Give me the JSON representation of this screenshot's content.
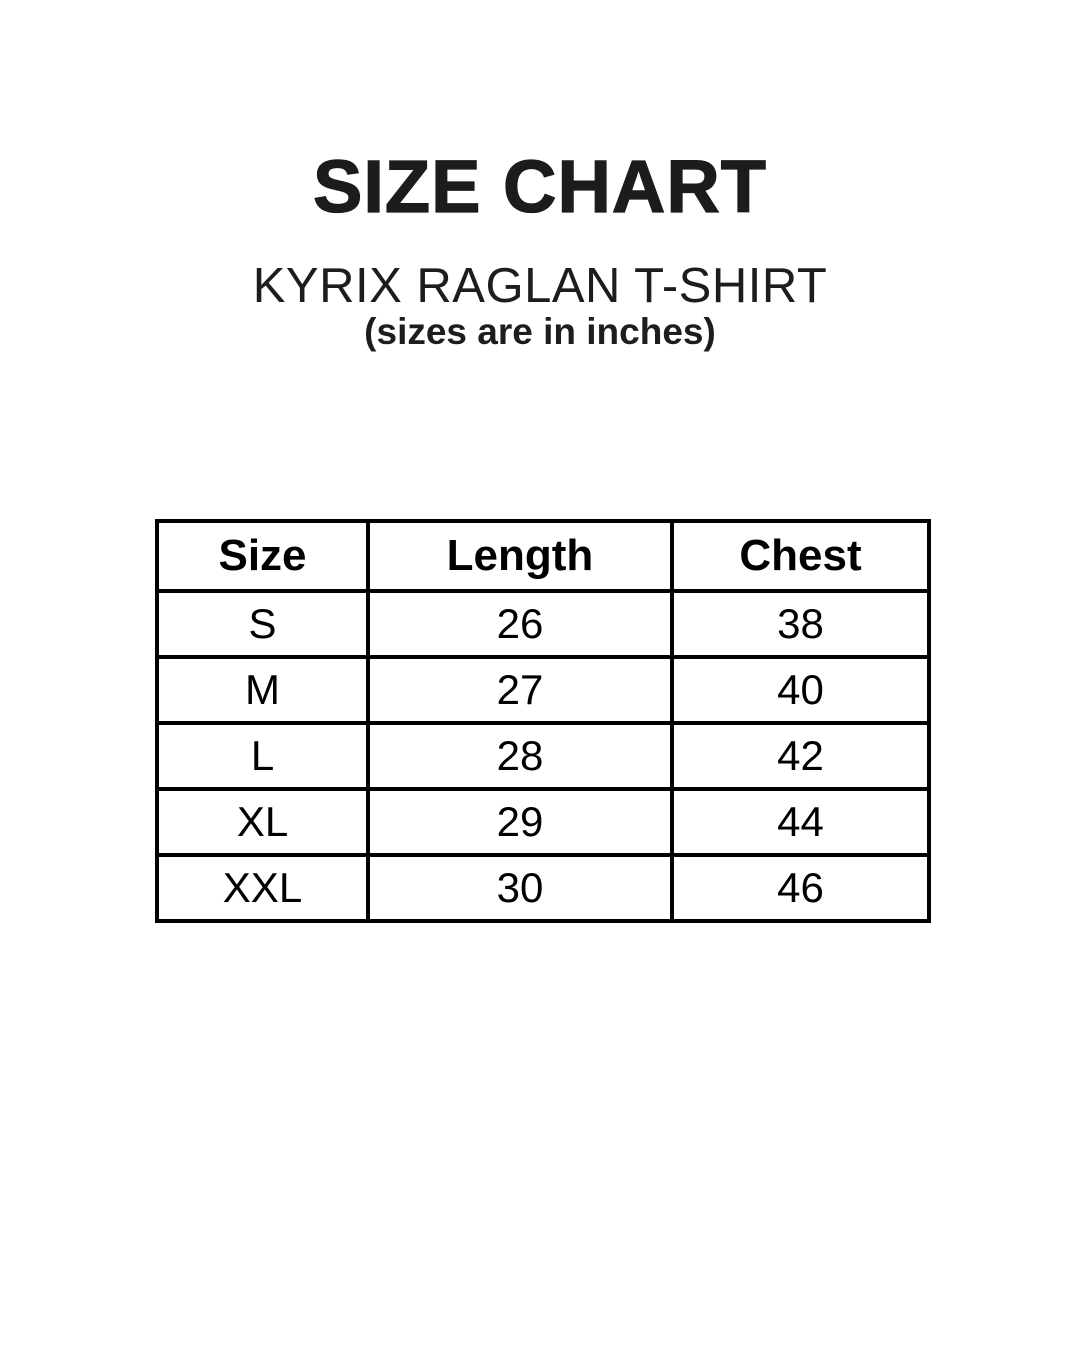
{
  "header": {
    "title": "SIZE CHART",
    "subtitle": "KYRIX RAGLAN T-SHIRT",
    "units_note": "(sizes are in inches)"
  },
  "chart_data": {
    "type": "table",
    "title": "SIZE CHART",
    "subtitle": "KYRIX RAGLAN T-SHIRT",
    "units": "inches",
    "columns": [
      "Size",
      "Length",
      "Chest"
    ],
    "rows": [
      [
        "S",
        26,
        38
      ],
      [
        "M",
        27,
        40
      ],
      [
        "L",
        28,
        42
      ],
      [
        "XL",
        29,
        44
      ],
      [
        "XXL",
        30,
        46
      ]
    ]
  },
  "colors": {
    "background": "#ffffff",
    "text": "#1d1d1b",
    "table_border": "#000000"
  }
}
